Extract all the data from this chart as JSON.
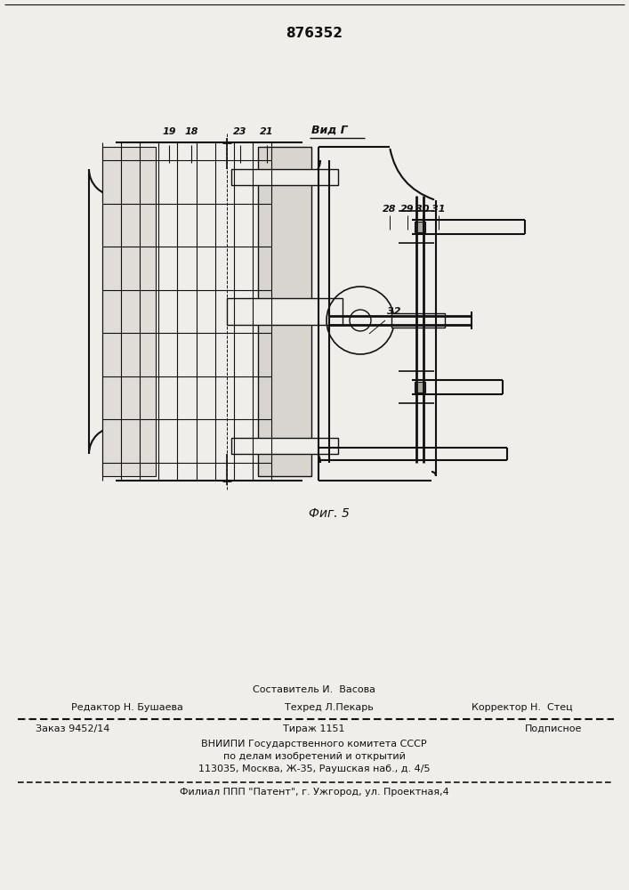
{
  "patent_number": "876352",
  "fig_label": "Фиг. 5",
  "view_label": "Вид Г",
  "bg_color": "#f0eeea",
  "line_color": "#111111",
  "text_color": "#111111",
  "footer_line1_center_top": "Составитель И.  Васова",
  "footer_line1_left": "Редактор Н. Бушаева",
  "footer_line1_center": "Техред Л.Пекарь",
  "footer_line1_right": "Корректор Н.  Стец",
  "footer_line2_left": "Заказ 9452/14",
  "footer_line2_center": "Тираж 1151",
  "footer_line2_right": "Подписное",
  "footer_line3": "ВНИИПИ Государственного комитета СССР",
  "footer_line4": "по делам изобретений и открытий",
  "footer_line5": "113035, Москва, Ж-35, Раушская наб., д. 4/5",
  "footer_line6": "Филиал ППП \"Патент\", г. Ужгород, ул. Проектная,4"
}
